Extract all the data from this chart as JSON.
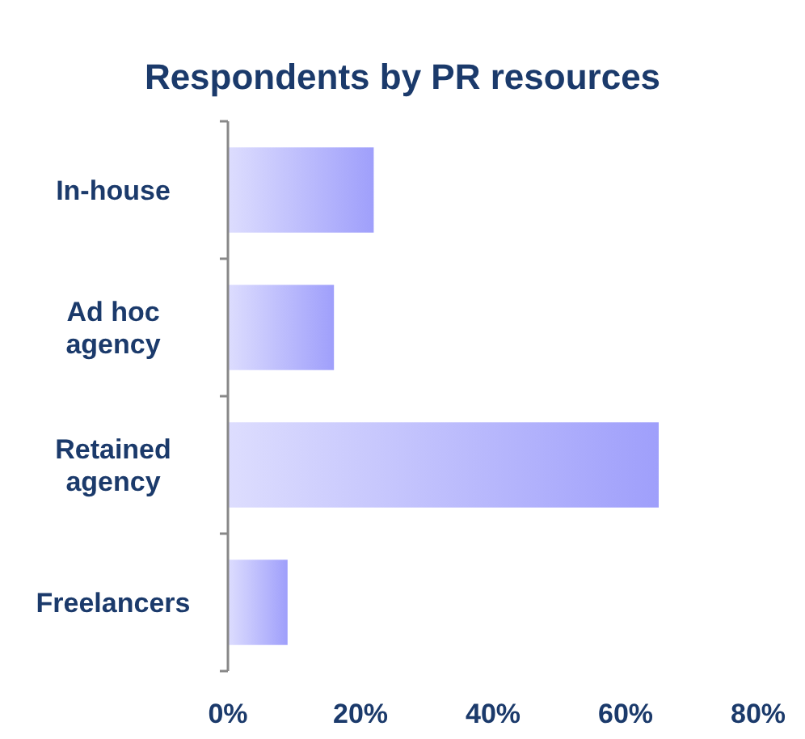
{
  "chart_data": {
    "type": "bar",
    "orientation": "horizontal",
    "title": "Respondents by PR resources",
    "categories": [
      "In-house",
      "Ad hoc agency",
      "Retained agency",
      "Freelancers"
    ],
    "values": [
      22,
      16,
      65,
      9
    ],
    "color": "#9f9ffb",
    "xlim": [
      0,
      80
    ],
    "xticks": [
      {
        "value": 0,
        "label": "0%"
      },
      {
        "value": 20,
        "label": "20%"
      },
      {
        "value": 40,
        "label": "40%"
      },
      {
        "value": 60,
        "label": "60%"
      },
      {
        "value": 80,
        "label": "80%"
      }
    ],
    "grid": false
  }
}
